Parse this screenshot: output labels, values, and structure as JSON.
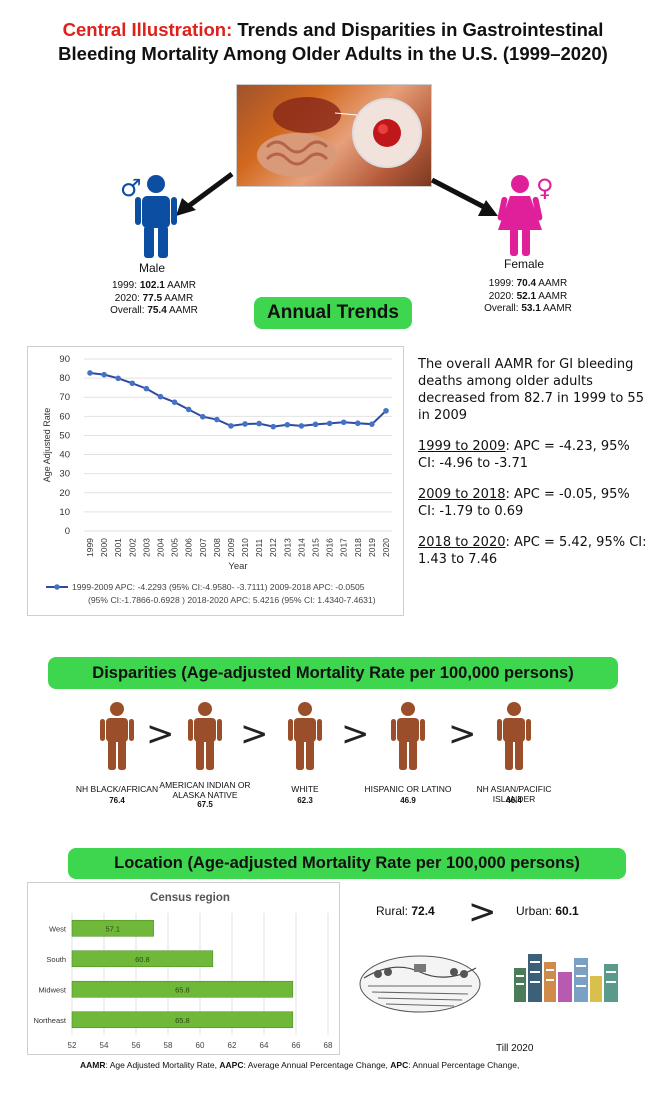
{
  "title": {
    "prefix": "Central Illustration:",
    "line1": "Trends and Disparities in Gastrointestinal",
    "line2": "Bleeding Mortality Among Older Adults in the U.S. (1999–2020)"
  },
  "sex": {
    "male": {
      "label": "Male",
      "y1999": "102.1",
      "y2020": "77.5",
      "overall": "75.4",
      "color": "#0b4ea2"
    },
    "female": {
      "label": "Female",
      "y1999": "70.4",
      "y2020": "52.1",
      "overall": "53.1",
      "color": "#e0209a"
    },
    "unit": "AAMR",
    "p1999": "1999:",
    "p2020": "2020:",
    "poverall": "Overall:"
  },
  "annual_trends_label": "Annual Trends",
  "trend_text": {
    "summary": "The overall AAMR for GI bleeding deaths among older adults decreased from 82.7 in 1999 to 55 in 2009",
    "seg1_period": "1999 to 2009",
    "seg1_stat": ": APC = -4.23, 95% CI: -4.96 to -3.71",
    "seg2_period": "2009 to 2018",
    "seg2_stat": ": APC = -0.05, 95% CI: -1.79 to 0.69",
    "seg3_period": "2018 to 2020",
    "seg3_stat": ": APC = 5.42, 95% CI: 1.43 to 7.46"
  },
  "disparities_label": "Disparities (Age-adjusted Mortality Rate per 100,000 persons)",
  "races": [
    {
      "label": "NH BLACK/AFRICAN",
      "value": "76.4"
    },
    {
      "label": "AMERICAN INDIAN OR ALASKA NATIVE",
      "value": "67.5"
    },
    {
      "label": "WHITE",
      "value": "62.3"
    },
    {
      "label": "HISPANIC OR LATINO",
      "value": "46.9"
    },
    {
      "label": "NH ASIAN/PACIFIC ISLANDER",
      "value": "46.4"
    }
  ],
  "gt_symbol": ">",
  "location_label": "Location (Age-adjusted Mortality Rate per 100,000 persons)",
  "rural_urban": {
    "rural_label": "Rural:",
    "rural_value": "72.4",
    "urban_label": "Urban:",
    "urban_value": "60.1",
    "till": "Till 2020"
  },
  "footer": {
    "aamr_abbr": "AAMR",
    "aamr_def": ": Age Adjusted Mortality Rate, ",
    "aapc_abbr": "AAPC",
    "aapc_def": ": Average Annual Percentage Change, ",
    "apc_abbr": "APC",
    "apc_def": ": Annual Percentage Change,"
  },
  "chart_data": [
    {
      "type": "line",
      "title": "",
      "xlabel": "Year",
      "ylabel": "Age Adjusted Rate",
      "ylim": [
        0,
        90
      ],
      "yticks": [
        0,
        10,
        20,
        30,
        40,
        50,
        60,
        70,
        80,
        90
      ],
      "x": [
        "1999",
        "2000",
        "2001",
        "2002",
        "2003",
        "2004",
        "2005",
        "2006",
        "2007",
        "2008",
        "2009",
        "2010",
        "2011",
        "2012",
        "2013",
        "2014",
        "2015",
        "2016",
        "2017",
        "2018",
        "2019",
        "2020"
      ],
      "values": [
        82.7,
        81.8,
        79.9,
        77.3,
        74.5,
        70.3,
        67.4,
        63.6,
        59.8,
        58.3,
        55.0,
        56.0,
        56.2,
        54.6,
        55.6,
        55.0,
        55.8,
        56.3,
        56.9,
        56.4,
        55.9,
        62.9
      ],
      "grid": true,
      "color": "#2f4b9e",
      "legend": "bottom",
      "legend_text_1": "1999-2009 APC: -4.2293 (95% CI:-4.9580- -3.7111) 2009-2018 APC: -0.0505",
      "legend_text_2": "(95% CI:-1.7866-0.6928 ) 2018-2020 APC: 5.4216 (95% CI: 1.4340-7.4631)"
    },
    {
      "type": "bar",
      "orientation": "horizontal",
      "title": "Census region",
      "categories": [
        "West",
        "South",
        "Midwest",
        "Northeast"
      ],
      "values": [
        57.1,
        60.8,
        65.8,
        65.8
      ],
      "value_labels": [
        "57.1",
        "60.8",
        "65.8",
        "65.8"
      ],
      "xlim": [
        52,
        68
      ],
      "xticks": [
        52,
        54,
        56,
        58,
        60,
        62,
        64,
        66,
        68
      ],
      "grid": true,
      "color": "#6fb83a"
    }
  ]
}
